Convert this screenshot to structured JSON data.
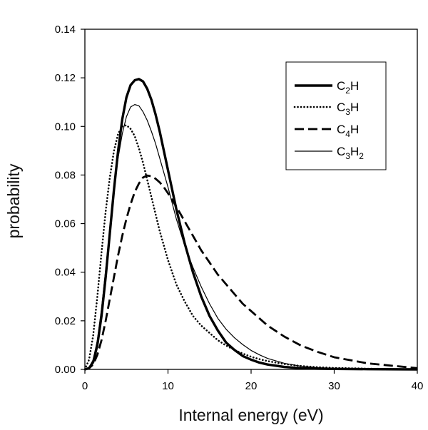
{
  "chart_data": {
    "type": "line",
    "title": "",
    "xlabel": "Internal energy (eV)",
    "ylabel": "probability",
    "xlim": [
      0,
      40
    ],
    "ylim": [
      0,
      0.14
    ],
    "xticks": [
      0,
      10,
      20,
      30,
      40
    ],
    "xtick_labels": [
      "0",
      "10",
      "20",
      "30",
      "40"
    ],
    "yticks": [
      0,
      0.02,
      0.04,
      0.06,
      0.08,
      0.1,
      0.12,
      0.14
    ],
    "ytick_labels": [
      "0.00",
      "0.02",
      "0.04",
      "0.06",
      "0.08",
      "0.10",
      "0.12",
      "0.14"
    ],
    "grid": false,
    "legend_position": "top-right",
    "series": [
      {
        "name": "C2H",
        "legend_parts": [
          {
            "t": "C"
          },
          {
            "t": "2",
            "sub": true
          },
          {
            "t": "H"
          }
        ],
        "style": "solid-thick",
        "x": [
          0,
          0.5,
          1,
          1.5,
          2,
          2.5,
          3,
          3.5,
          4,
          4.5,
          5,
          5.5,
          6,
          6.5,
          7,
          7.5,
          8,
          8.5,
          9,
          9.5,
          10,
          11,
          12,
          13,
          14,
          15,
          16,
          17,
          18,
          19,
          20,
          21,
          22,
          24,
          26,
          28,
          30,
          34,
          40
        ],
        "y": [
          0,
          0.0005,
          0.003,
          0.01,
          0.022,
          0.038,
          0.056,
          0.074,
          0.09,
          0.103,
          0.112,
          0.117,
          0.119,
          0.1195,
          0.1185,
          0.1155,
          0.111,
          0.105,
          0.098,
          0.09,
          0.082,
          0.066,
          0.052,
          0.04,
          0.03,
          0.022,
          0.016,
          0.011,
          0.008,
          0.0055,
          0.004,
          0.0028,
          0.002,
          0.001,
          0.0005,
          0.0003,
          0.0002,
          0.0001,
          0
        ]
      },
      {
        "name": "C3H",
        "legend_parts": [
          {
            "t": "C"
          },
          {
            "t": "3",
            "sub": true
          },
          {
            "t": "H"
          }
        ],
        "style": "dotted",
        "x": [
          0,
          0.5,
          1,
          1.5,
          2,
          2.5,
          3,
          3.5,
          4,
          4.5,
          5,
          5.5,
          6,
          6.5,
          7,
          7.5,
          8,
          8.5,
          9,
          9.5,
          10,
          11,
          12,
          13,
          14,
          15,
          16,
          17,
          18,
          19,
          20,
          21,
          22,
          24,
          26,
          28,
          30,
          34,
          40
        ],
        "y": [
          0,
          0.004,
          0.014,
          0.03,
          0.048,
          0.065,
          0.079,
          0.09,
          0.097,
          0.1,
          0.1005,
          0.099,
          0.096,
          0.091,
          0.085,
          0.078,
          0.071,
          0.064,
          0.057,
          0.051,
          0.045,
          0.035,
          0.028,
          0.022,
          0.018,
          0.015,
          0.012,
          0.0098,
          0.008,
          0.0065,
          0.0052,
          0.0042,
          0.0034,
          0.0022,
          0.0014,
          0.0009,
          0.0006,
          0.0003,
          0
        ]
      },
      {
        "name": "C4H",
        "legend_parts": [
          {
            "t": "C"
          },
          {
            "t": "4",
            "sub": true
          },
          {
            "t": "H"
          }
        ],
        "style": "dashed",
        "x": [
          0,
          0.5,
          1,
          1.5,
          2,
          2.5,
          3,
          3.5,
          4,
          4.5,
          5,
          5.5,
          6,
          6.5,
          7,
          7.5,
          8,
          8.5,
          9,
          9.5,
          10,
          11,
          12,
          13,
          14,
          15,
          16,
          17,
          18,
          19,
          20,
          21,
          22,
          24,
          26,
          28,
          30,
          34,
          40
        ],
        "y": [
          0,
          0.0005,
          0.002,
          0.006,
          0.012,
          0.02,
          0.029,
          0.038,
          0.047,
          0.055,
          0.062,
          0.068,
          0.073,
          0.0765,
          0.079,
          0.0798,
          0.0795,
          0.0785,
          0.077,
          0.075,
          0.0725,
          0.067,
          0.061,
          0.055,
          0.049,
          0.044,
          0.039,
          0.035,
          0.031,
          0.027,
          0.024,
          0.021,
          0.018,
          0.0135,
          0.0098,
          0.0072,
          0.005,
          0.0025,
          0.0005
        ]
      },
      {
        "name": "C3H2",
        "legend_parts": [
          {
            "t": "C"
          },
          {
            "t": "3",
            "sub": true
          },
          {
            "t": "H"
          },
          {
            "t": "2",
            "sub": true
          }
        ],
        "style": "solid-thin",
        "x": [
          0,
          0.5,
          1,
          1.5,
          2,
          2.5,
          3,
          3.5,
          4,
          4.5,
          5,
          5.5,
          6,
          6.5,
          7,
          7.5,
          8,
          8.5,
          9,
          9.5,
          10,
          11,
          12,
          13,
          14,
          15,
          16,
          17,
          18,
          19,
          20,
          21,
          22,
          24,
          26,
          28,
          30,
          34,
          40
        ],
        "y": [
          0,
          0.0008,
          0.004,
          0.012,
          0.025,
          0.041,
          0.058,
          0.074,
          0.087,
          0.097,
          0.104,
          0.108,
          0.109,
          0.1085,
          0.106,
          0.1025,
          0.098,
          0.093,
          0.087,
          0.081,
          0.075,
          0.062,
          0.051,
          0.042,
          0.034,
          0.027,
          0.021,
          0.0165,
          0.013,
          0.0102,
          0.0078,
          0.006,
          0.0045,
          0.0025,
          0.0013,
          0.0007,
          0.0004,
          0.0001,
          0
        ]
      }
    ]
  }
}
